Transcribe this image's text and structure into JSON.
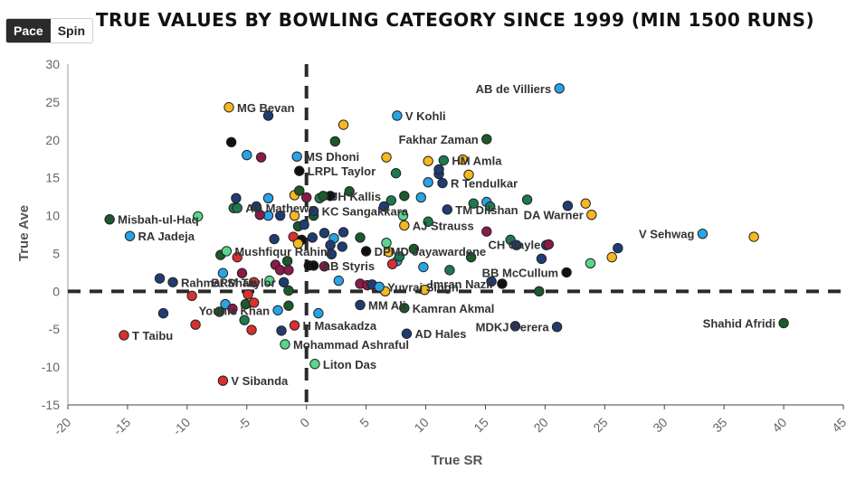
{
  "toggle": {
    "pace_label": "Pace",
    "spin_label": "Spin",
    "selected": "Pace"
  },
  "chart_data": {
    "type": "scatter",
    "title": "True Values by Bowling Category Since 1999 (Min 1500 Runs)",
    "xlabel": "True SR",
    "ylabel": "True Ave",
    "xlim": [
      -20,
      45
    ],
    "ylim": [
      -15,
      30
    ],
    "x_ticks": [
      -20,
      -15,
      -10,
      -5,
      0,
      5,
      10,
      15,
      20,
      25,
      30,
      35,
      40,
      45
    ],
    "y_ticks": [
      -15,
      -10,
      -5,
      0,
      5,
      10,
      15,
      20,
      25,
      30
    ],
    "grid": false,
    "reference_lines": {
      "x": 0,
      "y": 0,
      "style": "dashed"
    },
    "colors": {
      "blue": "#29a3e6",
      "navy": "#1f3d73",
      "green": "#1e7a4e",
      "dkgreen": "#1b5a2a",
      "gold": "#f5b820",
      "red": "#d9302e",
      "maroon": "#8a1a4a",
      "mint": "#58d68d",
      "black": "#111111"
    },
    "labeled_points": [
      {
        "name": "AB de Villiers",
        "x": 21.2,
        "y": 26.8,
        "color": "blue",
        "label_side": "left"
      },
      {
        "name": "MG Bevan",
        "x": -6.5,
        "y": 24.3,
        "color": "gold",
        "label_side": "right"
      },
      {
        "name": "V Kohli",
        "x": 7.6,
        "y": 23.2,
        "color": "blue",
        "label_side": "right"
      },
      {
        "name": "Fakhar Zaman",
        "x": 15.1,
        "y": 20.1,
        "color": "dkgreen",
        "label_side": "left"
      },
      {
        "name": "MS Dhoni",
        "x": -0.8,
        "y": 17.8,
        "color": "blue",
        "label_side": "right"
      },
      {
        "name": "HM Amla",
        "x": 11.5,
        "y": 17.3,
        "color": "green",
        "label_side": "right"
      },
      {
        "name": "LRPL Taylor",
        "x": -0.6,
        "y": 15.9,
        "color": "black",
        "label_side": "right"
      },
      {
        "name": "R Tendulkar",
        "x": 11.4,
        "y": 14.3,
        "color": "navy",
        "label_side": "right"
      },
      {
        "name": "JH Kallis",
        "x": 1.4,
        "y": 12.6,
        "color": "dkgreen",
        "label_side": "right"
      },
      {
        "name": "TM Dilshan",
        "x": 11.8,
        "y": 10.8,
        "color": "navy",
        "label_side": "right"
      },
      {
        "name": "KC Sangakkara",
        "x": 0.6,
        "y": 10.6,
        "color": "navy",
        "label_side": "right"
      },
      {
        "name": "DA Warner",
        "x": 23.9,
        "y": 10.1,
        "color": "gold",
        "label_side": "left"
      },
      {
        "name": "Misbah-ul-Haq",
        "x": -16.5,
        "y": 9.5,
        "color": "dkgreen",
        "label_side": "right"
      },
      {
        "name": "AD Mathews",
        "x": -5.8,
        "y": 11.0,
        "color": "green",
        "label_side": "right"
      },
      {
        "name": "AJ Strauss",
        "x": 8.2,
        "y": 8.7,
        "color": "gold",
        "label_side": "right"
      },
      {
        "name": "RA Jadeja",
        "x": -14.8,
        "y": 7.3,
        "color": "blue",
        "label_side": "right"
      },
      {
        "name": "V Sehwag",
        "x": 33.2,
        "y": 7.6,
        "color": "blue",
        "label_side": "left"
      },
      {
        "name": "DPMD Jayawardene",
        "x": 5.0,
        "y": 5.3,
        "color": "black",
        "label_side": "right"
      },
      {
        "name": "CH Gayle",
        "x": 20.3,
        "y": 6.2,
        "color": "maroon",
        "label_side": "left"
      },
      {
        "name": "Mushfiqur Rahim",
        "x": -6.7,
        "y": 5.3,
        "color": "mint",
        "label_side": "right"
      },
      {
        "name": "AB Styris",
        "x": 0.6,
        "y": 3.4,
        "color": "black",
        "label_side": "right"
      },
      {
        "name": "BB McCullum",
        "x": 21.8,
        "y": 2.5,
        "color": "black",
        "label_side": "left"
      },
      {
        "name": "Rahmat Shah",
        "x": -11.2,
        "y": 1.2,
        "color": "navy",
        "label_side": "right"
      },
      {
        "name": "BRM Taylor",
        "x": -1.9,
        "y": 1.2,
        "color": "navy",
        "label_side": "left"
      },
      {
        "name": "Yuvraj Singh",
        "x": 6.1,
        "y": 0.6,
        "color": "blue",
        "label_side": "right"
      },
      {
        "name": "Imran Nazir",
        "x": 16.4,
        "y": 1.0,
        "color": "black",
        "label_side": "left"
      },
      {
        "name": "MM Ali",
        "x": 4.5,
        "y": -1.8,
        "color": "navy",
        "label_side": "right"
      },
      {
        "name": "Kamran Akmal",
        "x": 8.2,
        "y": -2.2,
        "color": "dkgreen",
        "label_side": "right"
      },
      {
        "name": "Younis Khan",
        "x": -2.4,
        "y": -2.5,
        "color": "blue",
        "label_side": "left"
      },
      {
        "name": "H Masakadza",
        "x": -1.0,
        "y": -4.5,
        "color": "red",
        "label_side": "right"
      },
      {
        "name": "MDKJ Perera",
        "x": 21.0,
        "y": -4.7,
        "color": "navy",
        "label_side": "left"
      },
      {
        "name": "Shahid Afridi",
        "x": 40.0,
        "y": -4.2,
        "color": "dkgreen",
        "label_side": "left"
      },
      {
        "name": "T Taibu",
        "x": -15.3,
        "y": -5.8,
        "color": "red",
        "label_side": "right"
      },
      {
        "name": "AD Hales",
        "x": 8.4,
        "y": -5.6,
        "color": "navy",
        "label_side": "right"
      },
      {
        "name": "Mohammad Ashraful",
        "x": -1.8,
        "y": -7.0,
        "color": "mint",
        "label_side": "right"
      },
      {
        "name": "Liton Das",
        "x": 0.7,
        "y": -9.6,
        "color": "mint",
        "label_side": "right"
      },
      {
        "name": "V Sibanda",
        "x": -7.0,
        "y": -11.8,
        "color": "red",
        "label_side": "right"
      }
    ],
    "other_points": [
      [
        -6.3,
        19.7,
        "black"
      ],
      [
        -3.2,
        23.2,
        "navy"
      ],
      [
        -5.0,
        18.0,
        "blue"
      ],
      [
        -3.8,
        17.7,
        "maroon"
      ],
      [
        3.1,
        22.0,
        "gold"
      ],
      [
        2.4,
        19.8,
        "dkgreen"
      ],
      [
        6.7,
        17.7,
        "gold"
      ],
      [
        7.5,
        15.6,
        "green"
      ],
      [
        10.2,
        17.2,
        "gold"
      ],
      [
        11.1,
        15.5,
        "navy"
      ],
      [
        11.1,
        16.1,
        "navy"
      ],
      [
        13.1,
        17.4,
        "gold"
      ],
      [
        13.6,
        15.4,
        "gold"
      ],
      [
        10.2,
        14.4,
        "blue"
      ],
      [
        -1.0,
        12.7,
        "gold"
      ],
      [
        -0.6,
        13.3,
        "dkgreen"
      ],
      [
        0.0,
        12.4,
        "maroon"
      ],
      [
        1.1,
        12.3,
        "green"
      ],
      [
        3.6,
        13.2,
        "dkgreen"
      ],
      [
        2.0,
        12.6,
        "black"
      ],
      [
        -5.9,
        12.3,
        "navy"
      ],
      [
        -3.2,
        12.3,
        "blue"
      ],
      [
        -4.2,
        11.2,
        "navy"
      ],
      [
        -6.1,
        11.0,
        "green"
      ],
      [
        7.1,
        12.0,
        "green"
      ],
      [
        8.2,
        12.6,
        "dkgreen"
      ],
      [
        9.6,
        12.4,
        "blue"
      ],
      [
        6.5,
        11.2,
        "navy"
      ],
      [
        14.0,
        11.6,
        "green"
      ],
      [
        15.1,
        11.8,
        "blue"
      ],
      [
        15.4,
        11.2,
        "green"
      ],
      [
        18.5,
        12.1,
        "green"
      ],
      [
        21.9,
        11.3,
        "navy"
      ],
      [
        23.4,
        11.6,
        "gold"
      ],
      [
        -1.0,
        10.0,
        "gold"
      ],
      [
        0.6,
        10.0,
        "dkgreen"
      ],
      [
        -3.2,
        10.0,
        "blue"
      ],
      [
        -3.9,
        10.1,
        "maroon"
      ],
      [
        -2.2,
        10.0,
        "navy"
      ],
      [
        -0.7,
        8.6,
        "dkgreen"
      ],
      [
        -0.2,
        8.8,
        "navy"
      ],
      [
        -9.1,
        9.9,
        "mint"
      ],
      [
        8.1,
        10.0,
        "mint"
      ],
      [
        10.2,
        9.2,
        "green"
      ],
      [
        1.5,
        7.7,
        "navy"
      ],
      [
        3.1,
        7.8,
        "navy"
      ],
      [
        4.5,
        7.1,
        "dkgreen"
      ],
      [
        -1.1,
        7.2,
        "red"
      ],
      [
        -2.7,
        6.9,
        "navy"
      ],
      [
        -0.4,
        6.8,
        "black"
      ],
      [
        -0.7,
        6.3,
        "gold"
      ],
      [
        0.5,
        7.1,
        "navy"
      ],
      [
        2.3,
        7.0,
        "blue"
      ],
      [
        2.0,
        6.1,
        "navy"
      ],
      [
        6.7,
        6.4,
        "mint"
      ],
      [
        6.9,
        5.2,
        "gold"
      ],
      [
        9.0,
        5.6,
        "dkgreen"
      ],
      [
        15.1,
        7.9,
        "maroon"
      ],
      [
        17.1,
        6.8,
        "green"
      ],
      [
        17.6,
        6.1,
        "navy"
      ],
      [
        20.1,
        6.1,
        "navy"
      ],
      [
        26.1,
        5.7,
        "navy"
      ],
      [
        37.5,
        7.2,
        "gold"
      ],
      [
        -7.2,
        4.8,
        "dkgreen"
      ],
      [
        -5.8,
        4.5,
        "red"
      ],
      [
        -1.6,
        4.0,
        "dkgreen"
      ],
      [
        -2.6,
        3.5,
        "maroon"
      ],
      [
        -2.2,
        2.8,
        "maroon"
      ],
      [
        -1.5,
        2.8,
        "maroon"
      ],
      [
        1.5,
        3.3,
        "maroon"
      ],
      [
        0.2,
        3.4,
        "black"
      ],
      [
        2.1,
        4.9,
        "navy"
      ],
      [
        3.0,
        5.9,
        "navy"
      ],
      [
        7.6,
        4.0,
        "blue"
      ],
      [
        7.8,
        4.6,
        "green"
      ],
      [
        7.2,
        3.6,
        "red"
      ],
      [
        9.8,
        3.2,
        "blue"
      ],
      [
        13.8,
        4.5,
        "dkgreen"
      ],
      [
        19.7,
        4.3,
        "navy"
      ],
      [
        23.8,
        3.7,
        "mint"
      ],
      [
        25.6,
        4.5,
        "gold"
      ],
      [
        -12.3,
        1.7,
        "navy"
      ],
      [
        -7.0,
        2.4,
        "blue"
      ],
      [
        -5.4,
        2.4,
        "maroon"
      ],
      [
        -4.4,
        1.2,
        "red"
      ],
      [
        -3.1,
        1.4,
        "mint"
      ],
      [
        -1.5,
        0.1,
        "dkgreen"
      ],
      [
        2.7,
        1.4,
        "blue"
      ],
      [
        4.5,
        1.0,
        "maroon"
      ],
      [
        5.1,
        0.8,
        "maroon"
      ],
      [
        5.5,
        0.9,
        "navy"
      ],
      [
        6.6,
        0.0,
        "gold"
      ],
      [
        9.9,
        0.2,
        "gold"
      ],
      [
        12.0,
        2.8,
        "green"
      ],
      [
        15.5,
        1.3,
        "navy"
      ],
      [
        19.5,
        0.0,
        "dkgreen"
      ],
      [
        -9.6,
        -0.6,
        "red"
      ],
      [
        -6.8,
        -1.7,
        "blue"
      ],
      [
        -5.1,
        -1.7,
        "dkgreen"
      ],
      [
        -4.4,
        -1.5,
        "red"
      ],
      [
        -6.2,
        -2.3,
        "maroon"
      ],
      [
        -4.9,
        -0.4,
        "red"
      ],
      [
        -1.5,
        -1.9,
        "dkgreen"
      ],
      [
        -7.3,
        -2.7,
        "dkgreen"
      ],
      [
        -5.2,
        -3.8,
        "green"
      ],
      [
        -12.0,
        -2.9,
        "navy"
      ],
      [
        -9.3,
        -4.4,
        "red"
      ],
      [
        -4.6,
        -5.1,
        "red"
      ],
      [
        -2.1,
        -5.2,
        "navy"
      ],
      [
        1.0,
        -2.9,
        "blue"
      ],
      [
        17.5,
        -4.6,
        "navy"
      ]
    ]
  }
}
